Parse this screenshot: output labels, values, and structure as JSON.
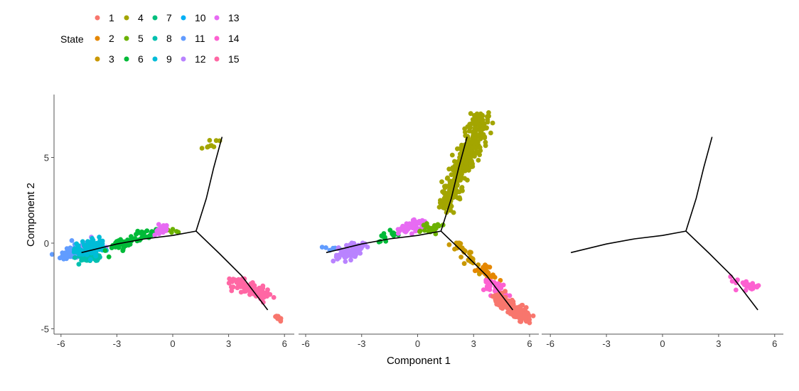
{
  "chart_data": {
    "type": "scatter",
    "title": "",
    "xlabel": "Component 1",
    "ylabel": "Component 2",
    "xlim": [
      -6.4,
      6.5
    ],
    "ylim": [
      -5.3,
      8.7
    ],
    "xticks": [
      -6,
      -3,
      0,
      3,
      6
    ],
    "yticks": [
      -5,
      0,
      5
    ],
    "xtick_labels": [
      "-6",
      "-3",
      "0",
      "3",
      "6"
    ],
    "ytick_labels": [
      "-5",
      "0",
      "5"
    ],
    "legend": {
      "title": "State",
      "placement": "top-left",
      "entries": [
        {
          "label": "1",
          "color": "#F8766D"
        },
        {
          "label": "2",
          "color": "#E58700"
        },
        {
          "label": "3",
          "color": "#C99800"
        },
        {
          "label": "4",
          "color": "#A3A500"
        },
        {
          "label": "5",
          "color": "#6BB100"
        },
        {
          "label": "6",
          "color": "#00BA38"
        },
        {
          "label": "7",
          "color": "#00BF7D"
        },
        {
          "label": "8",
          "color": "#00C0AF"
        },
        {
          "label": "9",
          "color": "#00BCD8"
        },
        {
          "label": "10",
          "color": "#00B0F6"
        },
        {
          "label": "11",
          "color": "#619CFF"
        },
        {
          "label": "12",
          "color": "#B983FF"
        },
        {
          "label": "13",
          "color": "#E76BF3"
        },
        {
          "label": "14",
          "color": "#FD61D1"
        },
        {
          "label": "15",
          "color": "#FF67A4"
        }
      ]
    },
    "trajectory": [
      [
        [
          -4.9,
          -0.55
        ],
        [
          -3,
          -0.05
        ],
        [
          -1.5,
          0.25
        ],
        [
          0,
          0.45
        ],
        [
          1.25,
          0.7
        ]
      ],
      [
        [
          1.25,
          0.7
        ],
        [
          1.8,
          2.6
        ],
        [
          2.2,
          4.4
        ],
        [
          2.65,
          6.2
        ]
      ],
      [
        [
          1.25,
          0.7
        ],
        [
          2.5,
          -0.6
        ],
        [
          3.7,
          -1.9
        ],
        [
          5.1,
          -3.9
        ]
      ]
    ],
    "panels": [
      {
        "clusters": [
          {
            "state": 11,
            "n": 90,
            "from": [
              -5.8,
              -0.7
            ],
            "to": [
              -4.8,
              -0.4
            ],
            "sd": 0.25
          },
          {
            "state": 8,
            "n": 60,
            "from": [
              -5.0,
              -0.9
            ],
            "to": [
              -3.9,
              -0.8
            ],
            "sd": 0.15
          },
          {
            "state": 12,
            "n": 12,
            "from": [
              -4.6,
              -0.1
            ],
            "to": [
              -3.6,
              -0.2
            ],
            "sd": 0.2
          },
          {
            "state": 9,
            "n": 90,
            "from": [
              -4.9,
              -0.5
            ],
            "to": [
              -3.9,
              -0.1
            ],
            "sd": 0.25
          },
          {
            "state": 6,
            "n": 60,
            "from": [
              -3.3,
              -0.4
            ],
            "to": [
              -1.0,
              0.7
            ],
            "sd": 0.2
          },
          {
            "state": 5,
            "n": 5,
            "from": [
              -0.4,
              0.9
            ],
            "to": [
              0.3,
              0.7
            ],
            "sd": 0.1
          },
          {
            "state": 13,
            "n": 30,
            "from": [
              -0.8,
              0.7
            ],
            "to": [
              -0.4,
              0.9
            ],
            "sd": 0.15
          },
          {
            "state": 4,
            "n": 9,
            "from": [
              1.6,
              5.5
            ],
            "to": [
              2.4,
              6.2
            ],
            "sd": 0.15
          },
          {
            "state": 15,
            "n": 110,
            "from": [
              3.3,
              -2.2
            ],
            "to": [
              5.0,
              -3.1
            ],
            "sd": 0.22
          },
          {
            "state": 1,
            "n": 10,
            "from": [
              5.5,
              -4.2
            ],
            "to": [
              5.8,
              -4.5
            ],
            "sd": 0.08
          }
        ]
      },
      {
        "clusters": [
          {
            "state": 11,
            "n": 6,
            "from": [
              -5.2,
              -0.3
            ],
            "to": [
              -4.4,
              -0.4
            ],
            "sd": 0.1
          },
          {
            "state": 12,
            "n": 80,
            "from": [
              -4.2,
              -0.7
            ],
            "to": [
              -3.0,
              -0.2
            ],
            "sd": 0.22
          },
          {
            "state": 6,
            "n": 14,
            "from": [
              -2.2,
              0.2
            ],
            "to": [
              -1.3,
              0.6
            ],
            "sd": 0.2
          },
          {
            "state": 13,
            "n": 50,
            "from": [
              -0.8,
              0.8
            ],
            "to": [
              0.3,
              1.2
            ],
            "sd": 0.2
          },
          {
            "state": 5,
            "n": 25,
            "from": [
              0.3,
              0.8
            ],
            "to": [
              1.0,
              0.9
            ],
            "sd": 0.15
          },
          {
            "state": 4,
            "n": 380,
            "from": [
              1.5,
              2.0
            ],
            "to": [
              3.5,
              7.5
            ],
            "sd": 0.28
          },
          {
            "state": 3,
            "n": 40,
            "from": [
              2.0,
              0.0
            ],
            "to": [
              3.5,
              -1.6
            ],
            "sd": 0.22
          },
          {
            "state": 2,
            "n": 30,
            "from": [
              3.3,
              -1.4
            ],
            "to": [
              4.1,
              -2.0
            ],
            "sd": 0.2
          },
          {
            "state": 14,
            "n": 40,
            "from": [
              3.7,
              -2.3
            ],
            "to": [
              4.6,
              -3.0
            ],
            "sd": 0.2
          },
          {
            "state": 1,
            "n": 140,
            "from": [
              4.3,
              -3.1
            ],
            "to": [
              5.8,
              -4.4
            ],
            "sd": 0.22
          }
        ]
      },
      {
        "clusters": [
          {
            "state": 14,
            "n": 30,
            "from": [
              3.8,
              -2.1
            ],
            "to": [
              5.0,
              -2.6
            ],
            "sd": 0.15
          }
        ]
      }
    ]
  }
}
